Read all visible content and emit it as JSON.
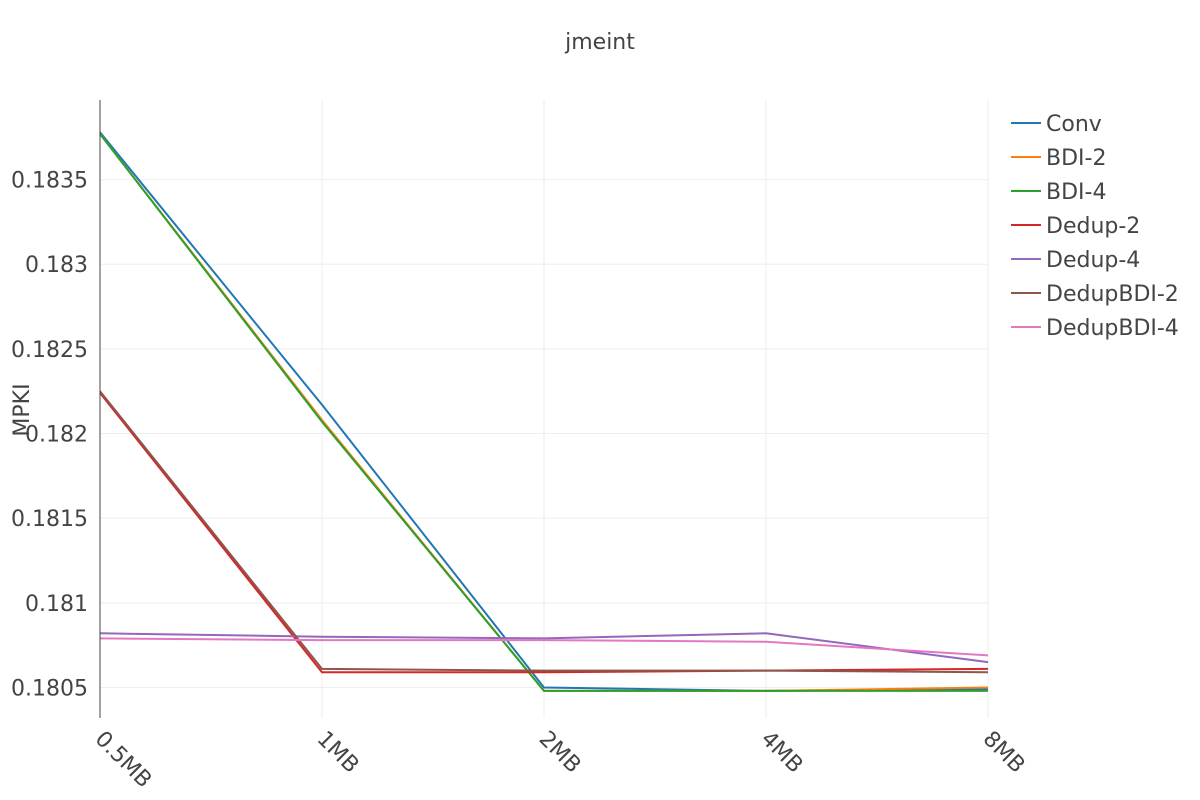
{
  "chart_data": {
    "type": "line",
    "title": "jmeint",
    "xlabel": "",
    "ylabel": "MPKI",
    "categories": [
      "0.5MB",
      "1MB",
      "2MB",
      "4MB",
      "8MB"
    ],
    "y_ticks": [
      "0.1805",
      "0.181",
      "0.1815",
      "0.182",
      "0.1825",
      "0.183",
      "0.1835"
    ],
    "ylim": [
      0.18032,
      0.18397
    ],
    "grid": true,
    "legend_position": "top-right",
    "series": [
      {
        "name": "Conv",
        "color": "#1f77b4",
        "values": [
          0.18378,
          0.18217,
          0.1805,
          0.18048,
          0.18049
        ]
      },
      {
        "name": "BDI-2",
        "color": "#ff7f0e",
        "values": [
          0.18377,
          0.18208,
          0.18048,
          0.18048,
          0.1805
        ]
      },
      {
        "name": "BDI-4",
        "color": "#2ca02c",
        "values": [
          0.18377,
          0.18207,
          0.18048,
          0.18048,
          0.18048
        ]
      },
      {
        "name": "Dedup-2",
        "color": "#d62728",
        "values": [
          0.18224,
          0.18059,
          0.18059,
          0.1806,
          0.18061
        ]
      },
      {
        "name": "Dedup-4",
        "color": "#9467bd",
        "values": [
          0.18082,
          0.1808,
          0.18079,
          0.18082,
          0.18065
        ]
      },
      {
        "name": "DedupBDI-2",
        "color": "#8c564b",
        "values": [
          0.18225,
          0.18061,
          0.1806,
          0.1806,
          0.18059
        ]
      },
      {
        "name": "DedupBDI-4",
        "color": "#e377c2",
        "values": [
          0.18079,
          0.18078,
          0.18078,
          0.18077,
          0.18069
        ]
      }
    ]
  }
}
